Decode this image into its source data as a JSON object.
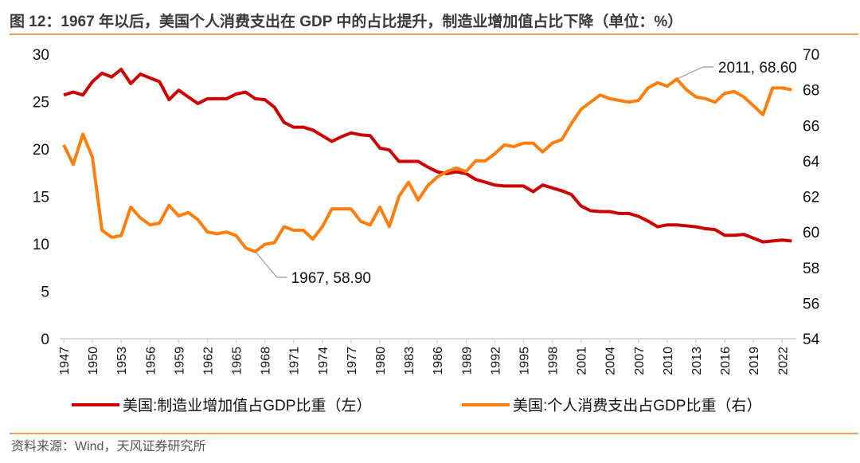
{
  "title": "图 12：1967 年以后，美国个人消费支出在 GDP 中的占比提升，制造业增加值占比下降（单位：%）",
  "source": "资料来源：Wind，天风证券研究所",
  "chart_data": {
    "type": "line",
    "title": "图 12：1967 年以后，美国个人消费支出在 GDP 中的占比提升，制造业增加值占比下降（单位：%）",
    "x_start": 1947,
    "x_end": 2023,
    "x_tick_labels": [
      "1947",
      "1950",
      "1953",
      "1956",
      "1959",
      "1962",
      "1965",
      "1968",
      "1971",
      "1974",
      "1977",
      "1980",
      "1983",
      "1986",
      "1989",
      "1992",
      "1995",
      "1998",
      "2001",
      "2004",
      "2007",
      "2010",
      "2013",
      "2016",
      "2019",
      "2022"
    ],
    "y_left": {
      "range": [
        0,
        30
      ],
      "ticks": [
        "0",
        "5",
        "10",
        "15",
        "20",
        "25",
        "30"
      ]
    },
    "y_right": {
      "range": [
        54,
        70
      ],
      "ticks": [
        "54",
        "56",
        "58",
        "60",
        "62",
        "64",
        "66",
        "68",
        "70"
      ]
    },
    "grid": false,
    "legend_position": "bottom",
    "series": [
      {
        "name": "美国:制造业增加值占GDP比重（左）",
        "axis": "left",
        "color": "#cc0000",
        "values": [
          25.7,
          26.0,
          25.7,
          27.1,
          28.0,
          27.6,
          28.4,
          26.9,
          27.9,
          27.5,
          27.1,
          25.2,
          26.2,
          25.5,
          24.8,
          25.3,
          25.3,
          25.3,
          25.8,
          26.0,
          25.3,
          25.2,
          24.4,
          22.8,
          22.3,
          22.3,
          22.0,
          21.4,
          20.8,
          21.3,
          21.7,
          21.5,
          21.4,
          20.1,
          19.9,
          18.7,
          18.7,
          18.7,
          18.1,
          17.6,
          17.4,
          17.6,
          17.4,
          16.8,
          16.5,
          16.2,
          16.1,
          16.1,
          16.1,
          15.5,
          16.2,
          15.9,
          15.6,
          15.2,
          14.0,
          13.5,
          13.4,
          13.4,
          13.2,
          13.2,
          12.9,
          12.4,
          11.8,
          12.0,
          12.0,
          11.9,
          11.8,
          11.6,
          11.5,
          10.9,
          10.9,
          11.0,
          10.6,
          10.2,
          10.3,
          10.4,
          10.3
        ]
      },
      {
        "name": "美国:个人消费支出占GDP比重（右）",
        "axis": "right",
        "color": "#ff7f0e",
        "values": [
          64.9,
          63.8,
          65.5,
          64.2,
          60.1,
          59.7,
          59.8,
          61.4,
          60.8,
          60.4,
          60.5,
          61.5,
          60.9,
          61.1,
          60.7,
          60.0,
          59.9,
          60.0,
          59.8,
          59.1,
          58.9,
          59.3,
          59.4,
          60.3,
          60.1,
          60.1,
          59.6,
          60.3,
          61.3,
          61.3,
          61.3,
          60.6,
          60.4,
          61.4,
          60.3,
          62.0,
          62.8,
          61.8,
          62.6,
          63.1,
          63.4,
          63.6,
          63.4,
          64.0,
          64.0,
          64.4,
          64.9,
          64.8,
          65.0,
          65.0,
          64.5,
          65.0,
          65.2,
          66.1,
          66.9,
          67.3,
          67.7,
          67.5,
          67.4,
          67.3,
          67.4,
          68.1,
          68.4,
          68.2,
          68.6,
          68.0,
          67.6,
          67.5,
          67.3,
          67.8,
          67.9,
          67.6,
          67.1,
          66.6,
          68.1,
          68.1,
          68.0
        ]
      }
    ],
    "annotations": [
      {
        "text": "1967, 58.90",
        "x": 1967,
        "y": 58.9,
        "series": 1
      },
      {
        "text": "2011, 68.60",
        "x": 2011,
        "y": 68.6,
        "series": 1
      }
    ]
  }
}
